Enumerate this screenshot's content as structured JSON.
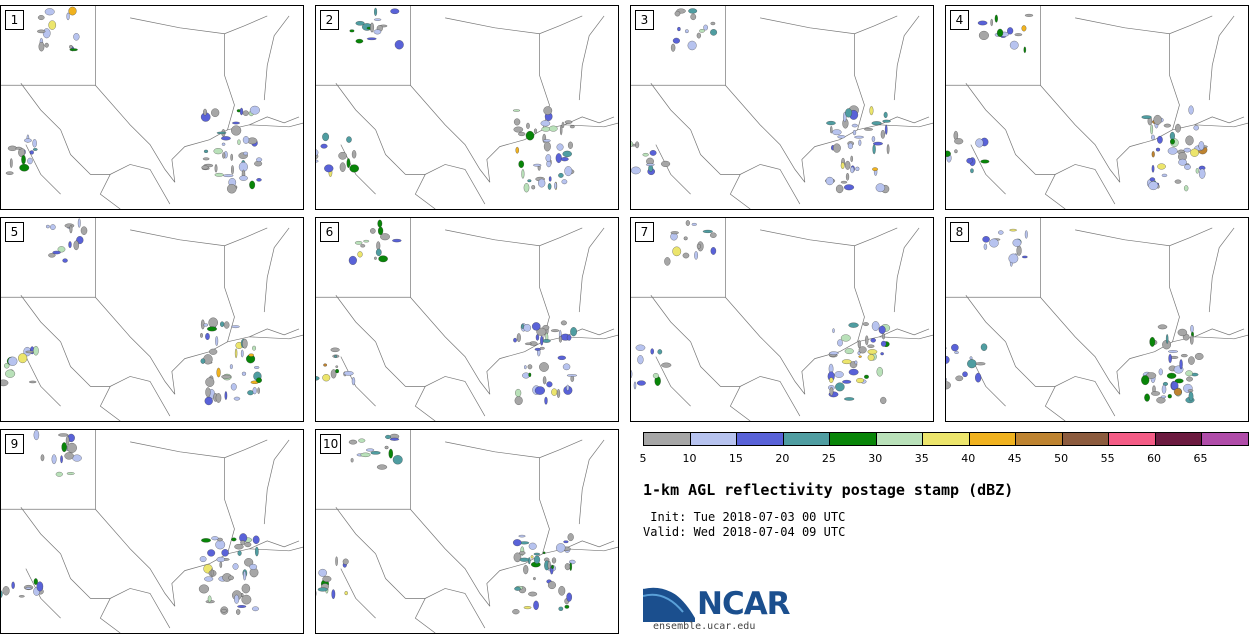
{
  "panels": [
    {
      "label": "1"
    },
    {
      "label": "2"
    },
    {
      "label": "3"
    },
    {
      "label": "4"
    },
    {
      "label": "5"
    },
    {
      "label": "6"
    },
    {
      "label": "7"
    },
    {
      "label": "8"
    },
    {
      "label": "9"
    },
    {
      "label": "10"
    }
  ],
  "colorbar": {
    "colors": [
      "#a6a6a6",
      "#b7c3ef",
      "#5962d8",
      "#4f9da1",
      "#088508",
      "#b9e1b9",
      "#ece56c",
      "#f0b21f",
      "#be8330",
      "#8c5b3e",
      "#f45c86",
      "#6c1a40",
      "#b04ca9"
    ],
    "ticks": [
      "5",
      "10",
      "15",
      "20",
      "25",
      "30",
      "35",
      "40",
      "45",
      "50",
      "55",
      "60",
      "65"
    ]
  },
  "title": "1-km AGL reflectivity postage stamp (dBZ)",
  "init_line": " Init: Tue 2018-07-03 00 UTC",
  "valid_line": "Valid: Wed 2018-07-04 09 UTC",
  "logo": {
    "text": "NCAR",
    "url": "ensemble.ucar.edu",
    "color": "#1b4f8e"
  }
}
